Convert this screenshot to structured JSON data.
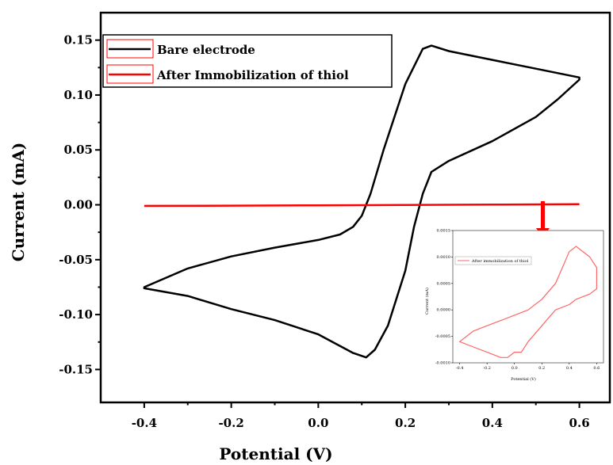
{
  "chart_data": [
    {
      "type": "line",
      "xlabel": "Potential (V)",
      "ylabel": "Current (mA)",
      "xlim": [
        -0.5,
        0.67
      ],
      "ylim": [
        -0.18,
        0.175
      ],
      "xticks": [
        -0.4,
        -0.2,
        0.0,
        0.2,
        0.4,
        0.6
      ],
      "xtick_labels": [
        "-0.4",
        "-0.2",
        "0.0",
        "0.2",
        "0.4",
        "0.6"
      ],
      "yticks": [
        0.15,
        0.1,
        0.05,
        0.0,
        -0.05,
        -0.1,
        -0.15
      ],
      "ytick_labels": [
        "0.15",
        "0.10",
        "0.05",
        "0.00",
        "-0.05",
        "-0.10",
        "-0.15"
      ],
      "legend_position": "top-left",
      "grid": false,
      "series": [
        {
          "name": "Bare electrode",
          "color": "#000000",
          "x": [
            -0.4,
            -0.3,
            -0.2,
            -0.1,
            0.0,
            0.05,
            0.08,
            0.1,
            0.12,
            0.15,
            0.2,
            0.24,
            0.26,
            0.3,
            0.4,
            0.5,
            0.6,
            0.6,
            0.55,
            0.5,
            0.4,
            0.3,
            0.26,
            0.24,
            0.22,
            0.2,
            0.16,
            0.13,
            0.11,
            0.08,
            0.0,
            -0.1,
            -0.2,
            -0.3,
            -0.4
          ],
          "y": [
            -0.075,
            -0.058,
            -0.047,
            -0.039,
            -0.032,
            -0.027,
            -0.02,
            -0.01,
            0.01,
            0.05,
            0.11,
            0.142,
            0.145,
            0.14,
            0.132,
            0.124,
            0.116,
            0.114,
            0.096,
            0.08,
            0.058,
            0.04,
            0.03,
            0.01,
            -0.02,
            -0.06,
            -0.11,
            -0.132,
            -0.139,
            -0.135,
            -0.118,
            -0.105,
            -0.095,
            -0.083,
            -0.076
          ]
        },
        {
          "name": "After Immobilization of thiol",
          "color": "#ff0000",
          "x": [
            -0.4,
            -0.2,
            0.0,
            0.2,
            0.4,
            0.6
          ],
          "y": [
            -0.001,
            -0.0008,
            -0.0005,
            -0.0002,
            0.0002,
            0.0005
          ]
        }
      ]
    },
    {
      "type": "line",
      "xlabel": "Potential (V)",
      "ylabel": "Current (mA)",
      "xlim": [
        -0.45,
        0.65
      ],
      "ylim": [
        -0.001,
        0.0015
      ],
      "xticks": [
        -0.4,
        -0.2,
        0.0,
        0.2,
        0.4,
        0.6
      ],
      "xtick_labels": [
        "-0.4",
        "-0.2",
        "0.0",
        "0.2",
        "0.4",
        "0.6"
      ],
      "yticks": [
        0.0015,
        0.001,
        0.0005,
        0.0,
        -0.0005,
        -0.001
      ],
      "ytick_labels": [
        "0.0015",
        "0.0010",
        "0.0005",
        "0.0000",
        "-0.0005",
        "-0.0010"
      ],
      "legend_position": "top-left",
      "series": [
        {
          "name": "After immobilization of thiol",
          "color": "#ff6666",
          "x": [
            -0.4,
            -0.3,
            -0.2,
            -0.1,
            0.0,
            0.1,
            0.2,
            0.3,
            0.35,
            0.4,
            0.45,
            0.55,
            0.6,
            0.6,
            0.55,
            0.45,
            0.4,
            0.3,
            0.2,
            0.1,
            0.05,
            0.0,
            -0.05,
            -0.1,
            -0.2,
            -0.3,
            -0.4
          ],
          "y": [
            -0.0006,
            -0.0004,
            -0.0003,
            -0.0002,
            -0.0001,
            0.0,
            0.0002,
            0.0005,
            0.0008,
            0.0011,
            0.0012,
            0.001,
            0.0008,
            0.0004,
            0.0003,
            0.0002,
            0.0001,
            0.0,
            -0.0003,
            -0.0006,
            -0.0008,
            -0.0008,
            -0.0009,
            -0.0009,
            -0.0008,
            -0.0007,
            -0.0006
          ]
        }
      ]
    }
  ]
}
